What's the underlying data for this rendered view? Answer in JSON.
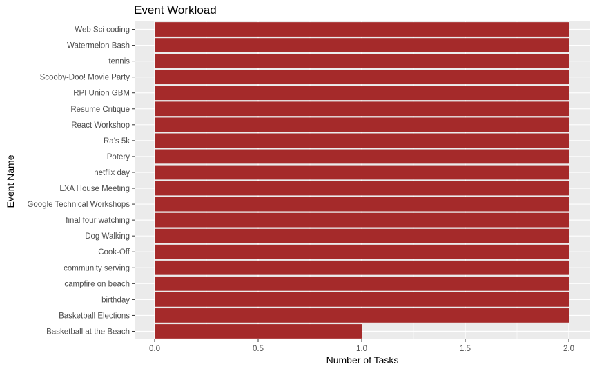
{
  "chart_data": {
    "type": "bar",
    "orientation": "horizontal",
    "title": "Event Workload",
    "xlabel": "Number of Tasks",
    "ylabel": "Event Name",
    "categories": [
      "Web Sci coding",
      "Watermelon Bash",
      "tennis",
      "Scooby-Doo! Movie Party",
      "RPI Union GBM",
      "Resume Critique",
      "React Workshop",
      "Ra's 5k",
      "Potery",
      "netflix day",
      "LXA House Meeting",
      "Google Technical Workshops",
      "final four watching",
      "Dog Walking",
      "Cook-Off",
      "community serving",
      "campfire on beach",
      "birthday",
      "Basketball Elections",
      "Basketball at the Beach"
    ],
    "values": [
      2,
      2,
      2,
      2,
      2,
      2,
      2,
      2,
      2,
      2,
      2,
      2,
      2,
      2,
      2,
      2,
      2,
      2,
      2,
      1
    ],
    "xlim": [
      0,
      2
    ],
    "xticks": [
      "0.0",
      "0.5",
      "1.0",
      "1.5",
      "2.0"
    ],
    "grid": true,
    "colors": {
      "bar": "#a52a2a",
      "panel": "#ebebeb",
      "grid": "#ffffff",
      "tick_text": "#4d4d4d"
    }
  }
}
